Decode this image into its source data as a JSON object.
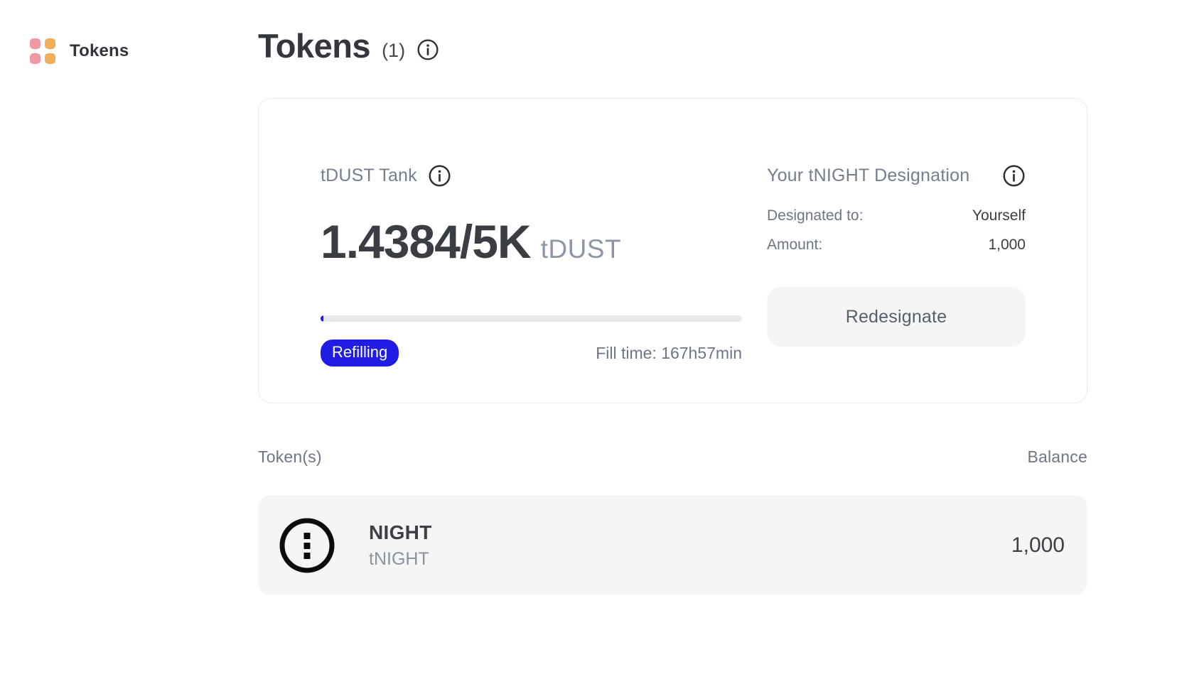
{
  "colors": {
    "accent_blue": "#211ce4",
    "icon_pink": "#ee9aa2",
    "icon_orange": "#f1ae54",
    "muted_text": "#6d7684",
    "dark_text": "#3a3d43",
    "surface_gray": "#f5f5f6"
  },
  "nav": {
    "label": "Tokens",
    "icon": "grid-icon"
  },
  "header": {
    "title": "Tokens",
    "count": "(1)",
    "icon": "info-icon"
  },
  "tank_card": {
    "title": "tDUST Tank",
    "amount": "1.4384/5K",
    "unit": "tDUST",
    "progress_percent": 0.03,
    "status_badge": "Refilling",
    "fill_time": "Fill time: 167h57min"
  },
  "designation": {
    "title": "Your tNIGHT Designation",
    "rows": [
      {
        "label": "Designated to:",
        "value": "Yourself"
      },
      {
        "label": "Amount:",
        "value": "1,000"
      }
    ],
    "button_label": "Redesignate"
  },
  "token_list": {
    "header_left": "Token(s)",
    "header_right": "Balance",
    "rows": [
      {
        "name": "NIGHT",
        "symbol": "tNIGHT",
        "balance": "1,000",
        "icon": "night-token-icon"
      }
    ]
  }
}
